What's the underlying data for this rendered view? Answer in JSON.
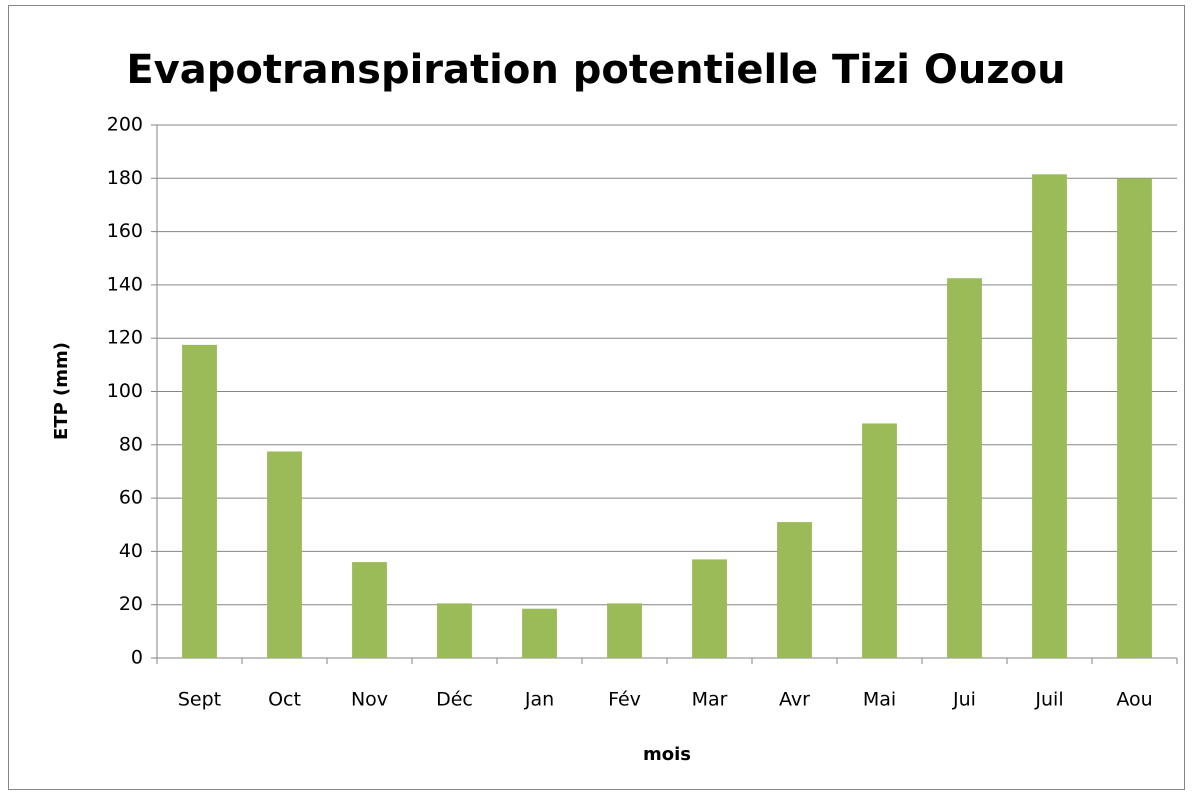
{
  "chart_data": {
    "type": "bar",
    "title": "Evapotranspiration potentielle Tizi Ouzou",
    "x_label": "mois",
    "y_label": "ETP (mm)",
    "categories": [
      "Sept",
      "Oct",
      "Nov",
      "Déc",
      "Jan",
      "Fév",
      "Mar",
      "Avr",
      "Mai",
      "Jui",
      "Juil",
      "Aou"
    ],
    "values": [
      117.5,
      77.5,
      36,
      20.5,
      18.5,
      20.5,
      37,
      51,
      88,
      142.5,
      181.5,
      180
    ],
    "color": "#9bbb59",
    "ylim": [
      0,
      200
    ],
    "yticks": [
      0,
      20,
      40,
      60,
      80,
      100,
      120,
      140,
      160,
      180,
      200
    ],
    "grid": true
  }
}
